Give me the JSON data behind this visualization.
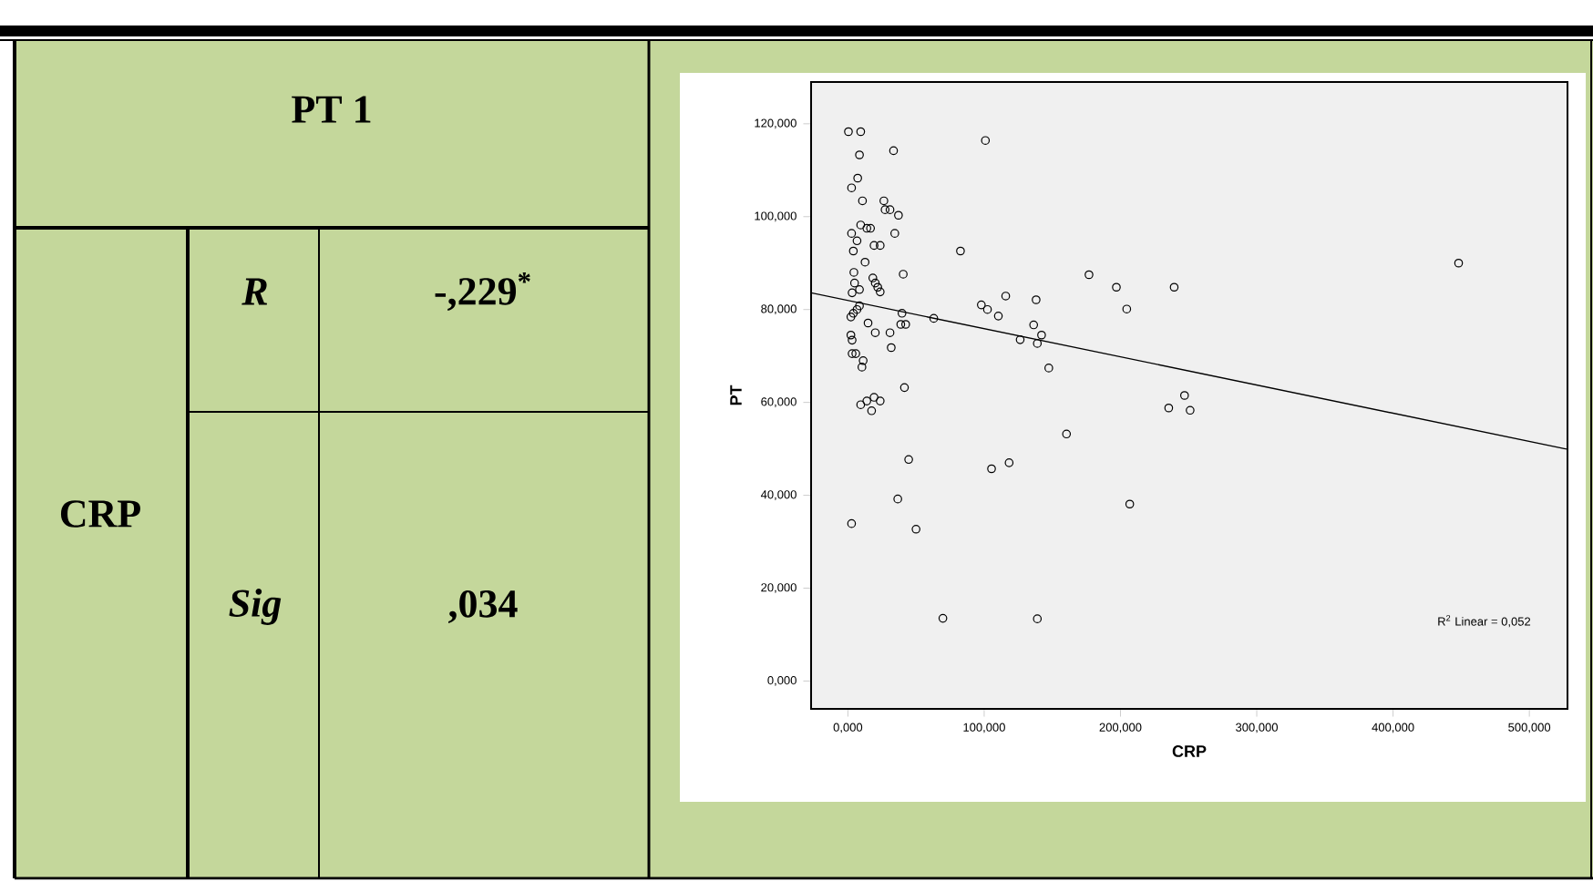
{
  "chart_data": [
    {
      "type": "other",
      "annotations": [
        "PT 1",
        "CRP",
        "R",
        "-,229$^{*}$",
        "Sig",
        ",034"
      ]
    },
    {
      "type": "scatter",
      "xlabel": "CRP",
      "ylabel": "PT",
      "xlim": [
        -27,
        528
      ],
      "ylim": [
        -6,
        129
      ],
      "xticks": [
        {
          "value": 0,
          "label": "0,000"
        },
        {
          "value": 100,
          "label": "100,000"
        },
        {
          "value": 200,
          "label": "200,000"
        },
        {
          "value": 300,
          "label": "300,000"
        },
        {
          "value": 400,
          "label": "400,000"
        },
        {
          "value": 500,
          "label": "500,000"
        }
      ],
      "yticks": [
        {
          "value": 0,
          "label": "0,000"
        },
        {
          "value": 20,
          "label": "20,000"
        },
        {
          "value": 40,
          "label": "40,000"
        },
        {
          "value": 60,
          "label": "60,000"
        },
        {
          "value": 80,
          "label": "80,000"
        },
        {
          "value": 100,
          "label": "100,000"
        },
        {
          "value": 120,
          "label": "120,000"
        }
      ],
      "annotations": [
        "R$^{2}$ Linear = 0,052"
      ],
      "series": [
        {
          "type": "scatter",
          "marker": "circle",
          "color": "#000000",
          "x": [
            0.4,
            9.4,
            8.5,
            33.5,
            7.2,
            2.7,
            10.7,
            26.4,
            27.3,
            30.9,
            37.1,
            2.7,
            9.4,
            13.9,
            16.6,
            34.4,
            6.7,
            19.2,
            23.7,
            4.0,
            82.6,
            12.6,
            4.4,
            40.6,
            4.9,
            18.3,
            20.1,
            21.9,
            23.7,
            8.5,
            3.1,
            8.5,
            6.7,
            4.0,
            2.2,
            39.7,
            14.8,
            38.8,
            42.4,
            63.0,
            97.9,
            102.4,
            110.4,
            115.8,
            20.1,
            30.9,
            2.2,
            3.1,
            31.8,
            3.1,
            5.8,
            11.2,
            10.3,
            41.5,
            9.4,
            13.9,
            19.2,
            23.7,
            17.4,
            44.6,
            105.4,
            118.3,
            36.6,
            2.7,
            50.0,
            69.7,
            100.9,
            176.9,
            197.0,
            239.4,
            204.6,
            448.1,
            138.1,
            136.3,
            142.1,
            126.4,
            139.0,
            147.4,
            247.0,
            235.4,
            251.1,
            160.4,
            206.8,
            139.0
          ],
          "values": [
            118.3,
            118.3,
            113.3,
            114.2,
            108.3,
            106.2,
            103.4,
            103.4,
            101.5,
            101.5,
            100.3,
            96.4,
            98.2,
            97.5,
            97.5,
            96.4,
            94.8,
            93.8,
            93.8,
            92.6,
            92.6,
            90.2,
            88.0,
            87.6,
            85.7,
            86.8,
            85.7,
            84.8,
            83.8,
            84.3,
            83.6,
            80.8,
            80.0,
            79.2,
            78.4,
            79.2,
            77.1,
            76.8,
            76.8,
            78.1,
            81.0,
            80.0,
            78.6,
            82.9,
            75.0,
            75.0,
            74.5,
            73.4,
            71.8,
            70.5,
            70.5,
            69.0,
            67.6,
            63.2,
            59.5,
            60.3,
            61.1,
            60.3,
            58.2,
            47.7,
            45.7,
            47.0,
            39.2,
            33.9,
            32.7,
            13.5,
            116.4,
            87.5,
            84.8,
            84.8,
            80.1,
            90.0,
            82.1,
            76.7,
            74.5,
            73.5,
            72.7,
            67.4,
            61.5,
            58.8,
            58.3,
            53.2,
            38.1,
            13.4
          ]
        },
        {
          "type": "line",
          "color": "#000000",
          "x": [
            -27,
            528
          ],
          "values": [
            83.6,
            49.9
          ]
        }
      ]
    }
  ]
}
